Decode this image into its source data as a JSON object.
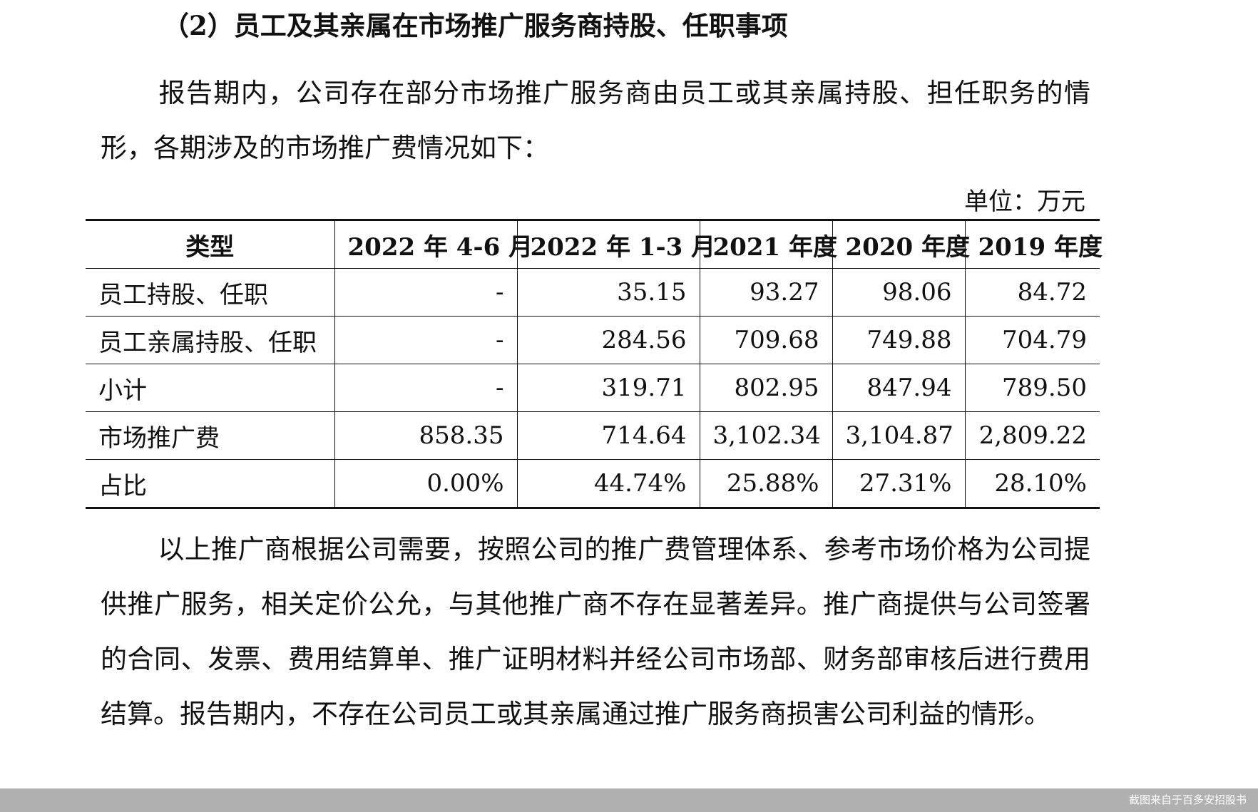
{
  "heading": "（2）员工及其亲属在市场推广服务商持股、任职事项",
  "paragraph1": "报告期内，公司存在部分市场推广服务商由员工或其亲属持股、担任职务的情形，各期涉及的市场推广费情况如下：",
  "unit_label": "单位：万元",
  "table": {
    "headers": [
      "类型",
      "2022 年 4-6 月",
      "2022 年 1-3 月",
      "2021 年度",
      "2020 年度",
      "2019 年度"
    ],
    "rows": [
      {
        "label": "员工持股、任职",
        "values": [
          "-",
          "35.15",
          "93.27",
          "98.06",
          "84.72"
        ]
      },
      {
        "label": "员工亲属持股、任职",
        "values": [
          "-",
          "284.56",
          "709.68",
          "749.88",
          "704.79"
        ]
      },
      {
        "label": "小计",
        "values": [
          "-",
          "319.71",
          "802.95",
          "847.94",
          "789.50"
        ]
      },
      {
        "label": "市场推广费",
        "values": [
          "858.35",
          "714.64",
          "3,102.34",
          "3,104.87",
          "2,809.22"
        ]
      },
      {
        "label": "占比",
        "values": [
          "0.00%",
          "44.74%",
          "25.88%",
          "27.31%",
          "28.10%"
        ]
      }
    ]
  },
  "paragraph2": "以上推广商根据公司需要，按照公司的推广费管理体系、参考市场价格为公司提供推广服务，相关定价公允，与其他推广商不存在显著差异。推广商提供与公司签署的合同、发票、费用结算单、推广证明材料并经公司市场部、财务部审核后进行费用结算。报告期内，不存在公司员工或其亲属通过推广服务商损害公司利益的情形。",
  "watermark": "截图来自于百多安招股书"
}
